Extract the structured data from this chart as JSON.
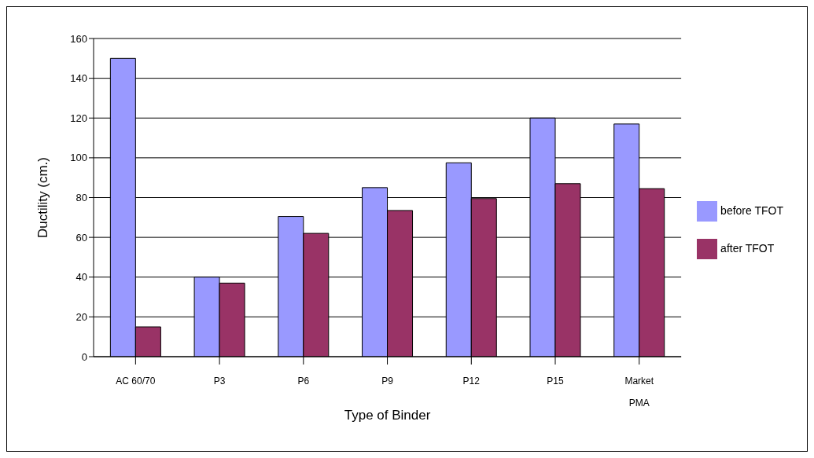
{
  "chart_data": {
    "type": "bar",
    "xlabel": "Type of Binder",
    "ylabel": "Ductility (cm.)",
    "categories": [
      "AC 60/70",
      "P3",
      "P6",
      "P9",
      "P12",
      "P15",
      "Market PMA"
    ],
    "series": [
      {
        "name": "before TFOT",
        "color": "#9999ff",
        "values": [
          150,
          40,
          70.5,
          85,
          97.5,
          120,
          117
        ]
      },
      {
        "name": "after TFOT",
        "color": "#993366",
        "values": [
          15,
          37,
          62,
          73.5,
          79.5,
          87,
          84.5
        ]
      }
    ],
    "ylim": [
      0,
      160
    ],
    "yticks": [
      0,
      20,
      40,
      60,
      80,
      100,
      120,
      140,
      160
    ],
    "grid": "y",
    "legend": "right"
  }
}
